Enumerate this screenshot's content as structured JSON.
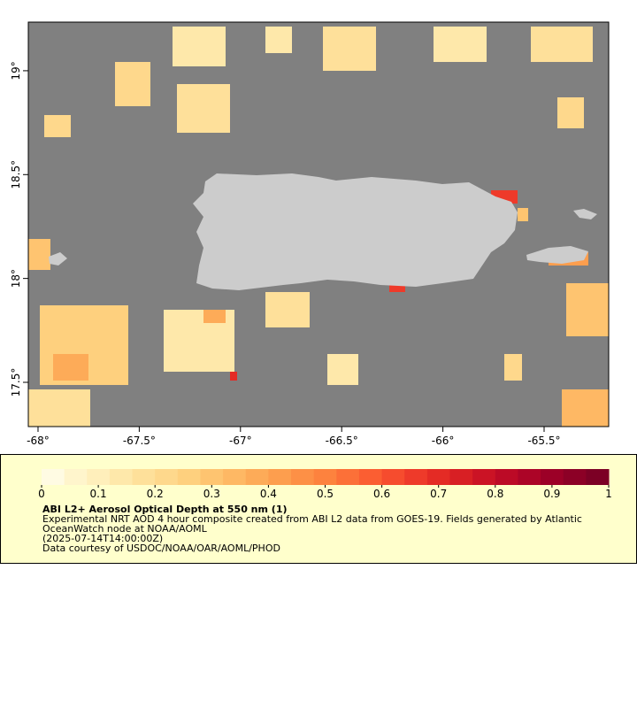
{
  "map": {
    "xlim": [
      -68.048,
      -65.181
    ],
    "ylim": [
      17.287,
      19.234
    ],
    "xticks": [
      {
        "value": -68,
        "label": "-68°"
      },
      {
        "value": -67.5,
        "label": "-67.5°"
      },
      {
        "value": -67,
        "label": "-67°"
      },
      {
        "value": -66.5,
        "label": "-66.5°"
      },
      {
        "value": -66,
        "label": "-66°"
      },
      {
        "value": -65.5,
        "label": "-65.5°"
      }
    ],
    "yticks": [
      {
        "value": 17.5,
        "label": "17.5°"
      },
      {
        "value": 18,
        "label": "18°"
      },
      {
        "value": 18.5,
        "label": "18.5°"
      },
      {
        "value": 19,
        "label": "19°"
      }
    ]
  },
  "colorbar": {
    "lim": [
      0,
      1
    ],
    "ticks": [
      0,
      0.1,
      0.2,
      0.3,
      0.4,
      0.5,
      0.6,
      0.7,
      0.8,
      0.9,
      1
    ],
    "colors": [
      "#fffbe3",
      "#fff5cc",
      "#ffefbb",
      "#fee8aa",
      "#fee09a",
      "#fed88c",
      "#fed07e",
      "#fec470",
      "#feb864",
      "#fdab58",
      "#fd9e4e",
      "#fd9046",
      "#fd823e",
      "#fc7038",
      "#fb5e32",
      "#f64c2e",
      "#ee3a2a",
      "#e42b25",
      "#d81f24",
      "#cb1325",
      "#bc0a26",
      "#ac0427",
      "#9c0027",
      "#8c0026",
      "#7c0025"
    ]
  },
  "caption": {
    "title": "ABI L2+ Aerosol Optical Depth at 550 nm (1)",
    "description": "Experimental NRT AOD 4 hour composite created from ABI L2 data from GOES-19. Fields generated by Atlantic OceanWatch node at NOAA/AOML",
    "time": "(2025-07-14T14:00:00Z)",
    "credit": "Data courtesy of USDOC/NOAA/OAR/AOML/PHOD"
  }
}
